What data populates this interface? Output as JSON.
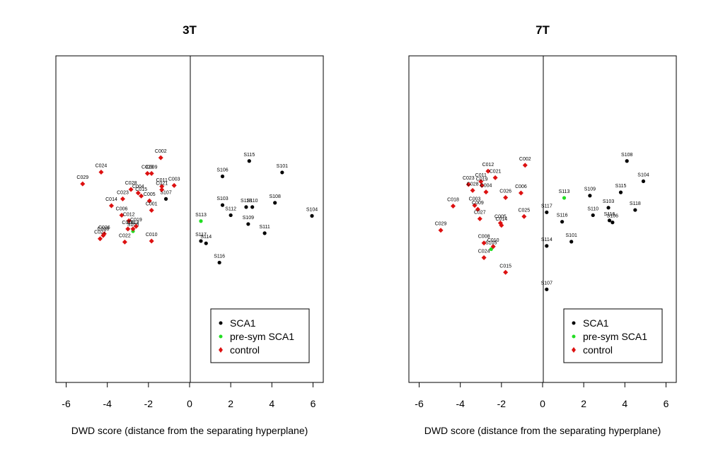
{
  "chart_data": [
    {
      "type": "scatter",
      "title": "3T",
      "xlabel": "DWD score (distance from the separating hyperplane)",
      "ylabel": "",
      "xlim": [
        -6.5,
        6.5
      ],
      "ylim": [
        0,
        1
      ],
      "xticks": [
        -6,
        -4,
        -2,
        0,
        2,
        4,
        6
      ],
      "xtick_labels": [
        "-6",
        "-4",
        "-2",
        "0",
        "2",
        "4",
        "6"
      ],
      "legend": [
        "SCA1",
        "pre-sym SCA1",
        "control"
      ],
      "legend_position": "bottom-right",
      "series": [
        {
          "name": "SCA1",
          "color": "#000000",
          "marker": "circle",
          "points": [
            {
              "label": "S115",
              "x": 2.9,
              "y": 0.678
            },
            {
              "label": "S101",
              "x": 4.5,
              "y": 0.643
            },
            {
              "label": "S106",
              "x": 1.6,
              "y": 0.631
            },
            {
              "label": "S108",
              "x": 4.15,
              "y": 0.55
            },
            {
              "label": "S103",
              "x": 1.6,
              "y": 0.543
            },
            {
              "label": "S110",
              "x": 3.05,
              "y": 0.537
            },
            {
              "label": "S118",
              "x": 2.75,
              "y": 0.537
            },
            {
              "label": "S112",
              "x": 2.0,
              "y": 0.512
            },
            {
              "label": "S104",
              "x": 5.95,
              "y": 0.51
            },
            {
              "label": "S109",
              "x": 2.85,
              "y": 0.485
            },
            {
              "label": "S111",
              "x": 3.65,
              "y": 0.457
            },
            {
              "label": "S117",
              "x": 0.55,
              "y": 0.433
            },
            {
              "label": "S114",
              "x": 0.8,
              "y": 0.426
            },
            {
              "label": "S116",
              "x": 1.45,
              "y": 0.367
            },
            {
              "label": "S107",
              "x": -1.15,
              "y": 0.562
            }
          ]
        },
        {
          "name": "pre-sym SCA1",
          "color": "#22dd22",
          "marker": "circle",
          "points": [
            {
              "label": "S113",
              "x": 0.55,
              "y": 0.494
            },
            {
              "label": "S105",
              "x": -2.75,
              "y": 0.463
            }
          ]
        },
        {
          "name": "control",
          "color": "#dd1111",
          "marker": "diamond",
          "points": [
            {
              "label": "C002",
              "x": -1.4,
              "y": 0.688
            },
            {
              "label": "C024",
              "x": -4.3,
              "y": 0.644
            },
            {
              "label": "C020",
              "x": -2.05,
              "y": 0.64
            },
            {
              "label": "C009",
              "x": -1.85,
              "y": 0.64
            },
            {
              "label": "C029",
              "x": -5.2,
              "y": 0.608
            },
            {
              "label": "C003",
              "x": -0.75,
              "y": 0.603
            },
            {
              "label": "C011",
              "x": -1.35,
              "y": 0.6
            },
            {
              "label": "C021",
              "x": -1.35,
              "y": 0.59
            },
            {
              "label": "C028",
              "x": -2.85,
              "y": 0.591
            },
            {
              "label": "C004",
              "x": -2.5,
              "y": 0.58
            },
            {
              "label": "C015",
              "x": -2.35,
              "y": 0.571
            },
            {
              "label": "C023",
              "x": -3.25,
              "y": 0.562
            },
            {
              "label": "C005",
              "x": -1.95,
              "y": 0.556
            },
            {
              "label": "C014",
              "x": -3.8,
              "y": 0.541
            },
            {
              "label": "C001",
              "x": -1.85,
              "y": 0.527
            },
            {
              "label": "C006",
              "x": -3.3,
              "y": 0.512
            },
            {
              "label": "C012",
              "x": -2.95,
              "y": 0.495
            },
            {
              "label": "C019",
              "x": -2.6,
              "y": 0.478
            },
            {
              "label": "C018",
              "x": -3.0,
              "y": 0.47
            },
            {
              "label": "C026",
              "x": -4.15,
              "y": 0.455
            },
            {
              "label": "C008",
              "x": -4.2,
              "y": 0.45
            },
            {
              "label": "C027",
              "x": -4.35,
              "y": 0.44
            },
            {
              "label": "C022",
              "x": -3.15,
              "y": 0.43
            },
            {
              "label": "C010",
              "x": -1.85,
              "y": 0.433
            },
            {
              "label": "C013",
              "x": -2.75,
              "y": 0.47
            }
          ]
        }
      ]
    },
    {
      "type": "scatter",
      "title": "7T",
      "xlabel": "DWD score (distance from the separating hyperplane)",
      "ylabel": "",
      "xlim": [
        -6.5,
        6.5
      ],
      "ylim": [
        0,
        1
      ],
      "xticks": [
        -6,
        -4,
        -2,
        0,
        2,
        4,
        6
      ],
      "xtick_labels": [
        "-6",
        "-4",
        "-2",
        "0",
        "2",
        "4",
        "6"
      ],
      "legend": [
        "SCA1",
        "pre-sym SCA1",
        "control"
      ],
      "legend_position": "bottom-right",
      "series": [
        {
          "name": "SCA1",
          "color": "#000000",
          "marker": "circle",
          "points": [
            {
              "label": "S108",
              "x": 4.1,
              "y": 0.678
            },
            {
              "label": "S104",
              "x": 4.9,
              "y": 0.616
            },
            {
              "label": "S115",
              "x": 3.8,
              "y": 0.582
            },
            {
              "label": "S109",
              "x": 2.3,
              "y": 0.572
            },
            {
              "label": "S118",
              "x": 4.5,
              "y": 0.528
            },
            {
              "label": "S103",
              "x": 3.2,
              "y": 0.535
            },
            {
              "label": "S110",
              "x": 2.45,
              "y": 0.512
            },
            {
              "label": "S116",
              "x": 3.25,
              "y": 0.496
            },
            {
              "label": "S106",
              "x": 3.4,
              "y": 0.49
            },
            {
              "label": "S117",
              "x": 0.2,
              "y": 0.521
            },
            {
              "label": "S116",
              "x": 0.95,
              "y": 0.492
            },
            {
              "label": "S101",
              "x": 1.4,
              "y": 0.431
            },
            {
              "label": "S114",
              "x": 0.2,
              "y": 0.418
            },
            {
              "label": "S107",
              "x": 0.2,
              "y": 0.285
            }
          ]
        },
        {
          "name": "pre-sym SCA1",
          "color": "#22dd22",
          "marker": "circle",
          "points": [
            {
              "label": "S113",
              "x": 1.05,
              "y": 0.565
            },
            {
              "label": "S105",
              "x": -2.5,
              "y": 0.408
            }
          ]
        },
        {
          "name": "control",
          "color": "#dd1111",
          "marker": "diamond",
          "points": [
            {
              "label": "C002",
              "x": -0.85,
              "y": 0.665
            },
            {
              "label": "C012",
              "x": -2.65,
              "y": 0.647
            },
            {
              "label": "C021",
              "x": -2.3,
              "y": 0.627
            },
            {
              "label": "C011",
              "x": -3.0,
              "y": 0.615
            },
            {
              "label": "C023",
              "x": -3.6,
              "y": 0.606
            },
            {
              "label": "C019",
              "x": -2.95,
              "y": 0.603
            },
            {
              "label": "C028",
              "x": -3.4,
              "y": 0.588
            },
            {
              "label": "C004",
              "x": -2.75,
              "y": 0.583
            },
            {
              "label": "C006",
              "x": -1.05,
              "y": 0.58
            },
            {
              "label": "C026",
              "x": -1.8,
              "y": 0.566
            },
            {
              "label": "C003",
              "x": -3.3,
              "y": 0.542
            },
            {
              "label": "C009",
              "x": -3.15,
              "y": 0.53
            },
            {
              "label": "C018",
              "x": -4.35,
              "y": 0.54
            },
            {
              "label": "C025",
              "x": -0.9,
              "y": 0.508
            },
            {
              "label": "C005",
              "x": -2.05,
              "y": 0.488
            },
            {
              "label": "C027",
              "x": -3.05,
              "y": 0.501
            },
            {
              "label": "C014",
              "x": -2.0,
              "y": 0.481
            },
            {
              "label": "C029",
              "x": -4.95,
              "y": 0.466
            },
            {
              "label": "C008",
              "x": -2.85,
              "y": 0.427
            },
            {
              "label": "C010",
              "x": -2.4,
              "y": 0.416
            },
            {
              "label": "C024",
              "x": -2.85,
              "y": 0.382
            },
            {
              "label": "C015",
              "x": -1.8,
              "y": 0.337
            }
          ]
        }
      ]
    }
  ]
}
